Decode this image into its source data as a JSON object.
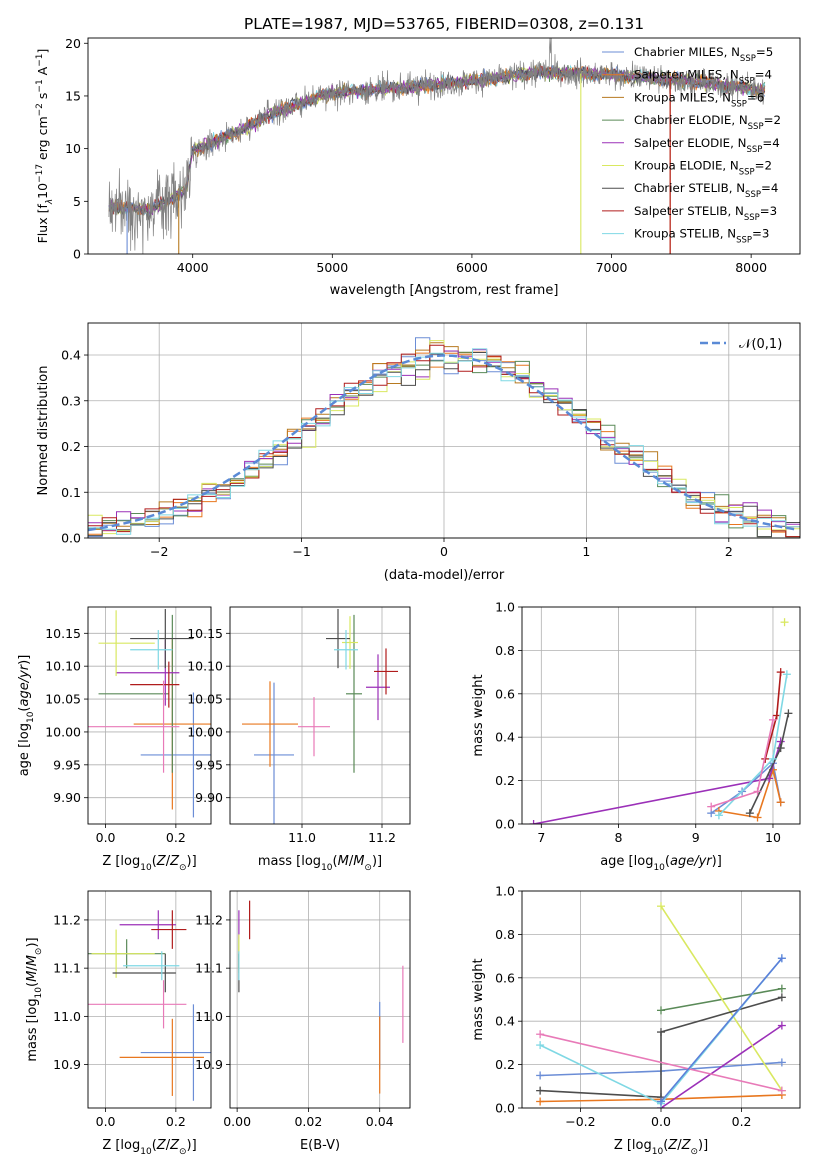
{
  "figure": {
    "title": "PLATE=1987, MJD=53765, FIBERID=0308, z=0.131"
  },
  "models": [
    {
      "name": "Chabrier MILES, N$_{SSP}$=5",
      "base": "Chabrier MILES, N",
      "sub": "SSP",
      "tail": "=5",
      "color": "#6b8dd6"
    },
    {
      "name": "Salpeter MILES, N$_{SSP}$=4",
      "base": "Salpeter MILES, N",
      "sub": "SSP",
      "tail": "=4",
      "color": "#e8771f"
    },
    {
      "name": "Kroupa MILES, N$_{SSP}$=6",
      "base": "Kroupa MILES, N",
      "sub": "SSP",
      "tail": "=6",
      "color": "#b77a20"
    },
    {
      "name": "Chabrier ELODIE, N$_{SSP}$=2",
      "base": "Chabrier ELODIE, N",
      "sub": "SSP",
      "tail": "=2",
      "color": "#5a8a58"
    },
    {
      "name": "Salpeter ELODIE, N$_{SSP}$=4",
      "base": "Salpeter ELODIE, N",
      "sub": "SSP",
      "tail": "=4",
      "color": "#9b30b8"
    },
    {
      "name": "Kroupa ELODIE, N$_{SSP}$=2",
      "base": "Kroupa ELODIE, N",
      "sub": "SSP",
      "tail": "=2",
      "color": "#d9e860"
    },
    {
      "name": "Chabrier STELIB, N$_{SSP}$=4",
      "base": "Chabrier STELIB, N",
      "sub": "SSP",
      "tail": "=4",
      "color": "#4d4d4d"
    },
    {
      "name": "Salpeter STELIB, N$_{SSP}$=3",
      "base": "Salpeter STELIB, N",
      "sub": "SSP",
      "tail": "=3",
      "color": "#b01c1c"
    },
    {
      "name": "Kroupa STELIB, N$_{SSP}$=3",
      "base": "Kroupa STELIB, N",
      "sub": "SSP",
      "tail": "=3",
      "color": "#7fd8e4"
    }
  ],
  "extra_colors": {
    "pink": "#e87ab8",
    "blue2": "#5b7fd9",
    "dashed": "#5a8ad6"
  },
  "chart_data": [
    {
      "type": "line",
      "panel": "spectrum",
      "xlabel": "wavelength [Angstrom, rest frame]",
      "ylabel_parts": [
        "Flux [f",
        "λ",
        "10",
        "−17",
        " erg cm",
        "−2",
        " s",
        "−1",
        " A",
        "−1",
        "]"
      ],
      "xlim": [
        3250,
        8350
      ],
      "ylim": [
        0,
        20.5
      ],
      "xticks": [
        4000,
        5000,
        6000,
        7000,
        8000
      ],
      "yticks": [
        0,
        5,
        10,
        15,
        20
      ],
      "x_start": 3400,
      "x_end": 8100,
      "continuum_knots": [
        [
          3400,
          4.5
        ],
        [
          3700,
          4.2
        ],
        [
          3950,
          6.0
        ],
        [
          4000,
          9.8
        ],
        [
          4300,
          11.5
        ],
        [
          4600,
          13.5
        ],
        [
          5000,
          15.3
        ],
        [
          5500,
          15.8
        ],
        [
          6000,
          16.4
        ],
        [
          6500,
          17.3
        ],
        [
          7000,
          17.0
        ],
        [
          7500,
          16.5
        ],
        [
          8100,
          15.5
        ]
      ],
      "dropouts": [
        {
          "series": 0,
          "x": 3530
        },
        {
          "series": 2,
          "x": 3900
        },
        {
          "series": 5,
          "x": 6780
        },
        {
          "series": 1,
          "x": 7420
        },
        {
          "series": 7,
          "x": 7420
        }
      ]
    },
    {
      "type": "histogram",
      "panel": "residuals",
      "xlabel": "(data-model)/error",
      "ylabel": "Normed distribution",
      "xlim": [
        -2.5,
        2.5
      ],
      "ylim": [
        0,
        0.47
      ],
      "xticks": [
        -2,
        -1,
        0,
        1,
        2
      ],
      "yticks": [
        0.0,
        0.1,
        0.2,
        0.3,
        0.4
      ],
      "bin_width": 0.1,
      "legend": "𝒩(0,1)",
      "legend_loc": "upper right"
    },
    {
      "type": "scatter",
      "panel": "age_vs_Z",
      "xlabel": "Z [log10(Z/Z⊙)]",
      "ylabel": "age  [log10(age/yr)]",
      "xlim": [
        -0.05,
        0.3
      ],
      "ylim": [
        9.86,
        10.19
      ],
      "xticks": [
        0.0,
        0.2
      ],
      "yticks": [
        9.9,
        9.95,
        10.0,
        10.05,
        10.1,
        10.15
      ],
      "points": [
        {
          "series": 0,
          "x": 0.2,
          "y": 9.965,
          "xerr": 0.1,
          "yerr": 0.095,
          "cross_x": 0.25
        },
        {
          "series": 1,
          "x": 0.19,
          "y": 10.012,
          "xerr": 0.11,
          "yerr": 0.13,
          "cross_x": 0.19
        },
        {
          "series": 3,
          "x": 0.08,
          "y": 10.058,
          "xerr": 0.1,
          "yerr": 0.12,
          "cross_x": 0.19
        },
        {
          "series": 4,
          "x": 0.12,
          "y": 10.09,
          "xerr": 0.09,
          "yerr": 0.05,
          "cross_x": 0.17
        },
        {
          "series": 5,
          "x": 0.06,
          "y": 10.135,
          "xerr": 0.08,
          "yerr": 0.05,
          "cross_x": 0.03
        },
        {
          "series": 6,
          "x": 0.16,
          "y": 10.142,
          "xerr": 0.09,
          "yerr": 0.045,
          "cross_x": 0.17
        },
        {
          "series": 7,
          "x": 0.14,
          "y": 10.072,
          "xerr": 0.07,
          "yerr": 0.035,
          "cross_x": 0.18
        },
        {
          "series": 8,
          "x": 0.13,
          "y": 10.125,
          "xerr": 0.06,
          "yerr": 0.03,
          "cross_x": 0.15
        },
        {
          "color": "pink",
          "x": 0.08,
          "y": 10.008,
          "xerr": 0.13,
          "yerr": 0.07,
          "cross_x": 0.165
        }
      ]
    },
    {
      "type": "scatter",
      "panel": "age_vs_mass",
      "xlabel": "mass [log10(M/M⊙)]",
      "ylabel": "",
      "xlim": [
        10.82,
        11.27
      ],
      "ylim": [
        9.86,
        10.19
      ],
      "xticks": [
        11.0,
        11.2
      ],
      "yticks": [
        9.9,
        9.95,
        10.0,
        10.05,
        10.1,
        10.15
      ],
      "points": [
        {
          "series": 0,
          "x": 10.93,
          "y": 9.965,
          "xerr": 0.05,
          "yerr": 0.11
        },
        {
          "series": 1,
          "x": 10.92,
          "y": 10.012,
          "xerr": 0.07,
          "yerr": 0.065
        },
        {
          "series": 3,
          "x": 11.13,
          "y": 10.058,
          "xerr": 0.02,
          "yerr": 0.12
        },
        {
          "series": 4,
          "x": 11.19,
          "y": 10.068,
          "xerr": 0.03,
          "yerr": 0.05
        },
        {
          "series": 5,
          "x": 11.12,
          "y": 10.136,
          "xerr": 0.02,
          "yerr": 0.04
        },
        {
          "series": 6,
          "x": 11.09,
          "y": 10.142,
          "xerr": 0.03,
          "yerr": 0.045
        },
        {
          "series": 7,
          "x": 11.21,
          "y": 10.092,
          "xerr": 0.03,
          "yerr": 0.035
        },
        {
          "series": 8,
          "x": 11.11,
          "y": 10.125,
          "xerr": 0.03,
          "yerr": 0.03
        },
        {
          "color": "pink",
          "x": 11.03,
          "y": 10.008,
          "xerr": 0.04,
          "yerr": 0.045
        }
      ]
    },
    {
      "type": "line",
      "panel": "weight_vs_age",
      "xlabel": "age  [log10(age/yr)]",
      "ylabel": "mass weight",
      "xlim": [
        6.75,
        10.35
      ],
      "ylim": [
        0,
        1.0
      ],
      "xticks": [
        7,
        8,
        9,
        10
      ],
      "yticks": [
        0.0,
        0.2,
        0.4,
        0.6,
        0.8,
        1.0
      ],
      "series": [
        {
          "series": 0,
          "x": [
            9.2,
            9.6,
            10.0,
            10.1
          ],
          "y": [
            0.05,
            0.15,
            0.28,
            0.1
          ]
        },
        {
          "series": 1,
          "x": [
            9.3,
            9.8,
            10.0,
            10.1
          ],
          "y": [
            0.06,
            0.03,
            0.25,
            0.1
          ]
        },
        {
          "series": 4,
          "x": [
            6.9,
            9.95,
            10.1
          ],
          "y": [
            0.0,
            0.21,
            0.38
          ]
        },
        {
          "series": 5,
          "x": [
            10.15
          ],
          "y": [
            0.93
          ]
        },
        {
          "series": 6,
          "x": [
            9.7,
            10.1,
            10.2
          ],
          "y": [
            0.05,
            0.35,
            0.51
          ]
        },
        {
          "series": 7,
          "x": [
            9.9,
            10.05,
            10.1
          ],
          "y": [
            0.3,
            0.5,
            0.7
          ]
        },
        {
          "series": 8,
          "x": [
            9.3,
            10.0,
            10.18
          ],
          "y": [
            0.04,
            0.3,
            0.69
          ]
        },
        {
          "color": "pink",
          "x": [
            9.2,
            9.8,
            10.0
          ],
          "y": [
            0.08,
            0.15,
            0.48
          ]
        }
      ]
    },
    {
      "type": "scatter",
      "panel": "mass_vs_Z",
      "xlabel": "Z [log10(Z/Z⊙)]",
      "ylabel": "mass [log10(M/M⊙)]",
      "xlim": [
        -0.05,
        0.3
      ],
      "ylim": [
        10.81,
        11.26
      ],
      "xticks": [
        0.0,
        0.2
      ],
      "yticks": [
        10.9,
        11.0,
        11.1,
        11.2
      ],
      "points": [
        {
          "series": 0,
          "x": 0.2,
          "y": 10.925,
          "xerr": 0.1,
          "yerr": 0.1,
          "cross_x": 0.25
        },
        {
          "series": 1,
          "x": 0.16,
          "y": 10.915,
          "xerr": 0.12,
          "yerr": 0.08,
          "cross_x": 0.19
        },
        {
          "series": 3,
          "x": 0.06,
          "y": 11.13,
          "xerr": 0.11,
          "yerr": 0.03,
          "cross_x": 0.06
        },
        {
          "series": 4,
          "x": 0.12,
          "y": 11.19,
          "xerr": 0.08,
          "yerr": 0.03,
          "cross_x": 0.15
        },
        {
          "series": 5,
          "x": 0.05,
          "y": 11.13,
          "xerr": 0.09,
          "yerr": 0.05,
          "cross_x": 0.03
        },
        {
          "series": 6,
          "x": 0.11,
          "y": 11.09,
          "xerr": 0.09,
          "yerr": 0.04,
          "cross_x": 0.17
        },
        {
          "series": 7,
          "x": 0.18,
          "y": 11.18,
          "xerr": 0.05,
          "yerr": 0.04,
          "cross_x": 0.19
        },
        {
          "series": 8,
          "x": 0.13,
          "y": 11.105,
          "xerr": 0.08,
          "yerr": 0.03,
          "cross_x": 0.16
        },
        {
          "color": "pink",
          "x": 0.09,
          "y": 11.025,
          "xerr": 0.14,
          "yerr": 0.05,
          "cross_x": 0.165
        }
      ]
    },
    {
      "type": "scatter",
      "panel": "mass_vs_ebv",
      "xlabel": "E(B-V)",
      "ylabel": "",
      "xlim": [
        -0.002,
        0.0485
      ],
      "ylim": [
        10.81,
        11.26
      ],
      "xticks": [
        0.0,
        0.02,
        0.04
      ],
      "yticks": [
        10.9,
        11.0,
        11.1,
        11.2
      ],
      "points": [
        {
          "series": 0,
          "x": 0.04,
          "y": 10.96,
          "yerr": 0.07
        },
        {
          "series": 1,
          "x": 0.04,
          "y": 10.92,
          "yerr": 0.08
        },
        {
          "series": 3,
          "x": 0.0005,
          "y": 11.13,
          "yerr": 0.03
        },
        {
          "series": 4,
          "x": 0.0005,
          "y": 11.19,
          "yerr": 0.03
        },
        {
          "series": 5,
          "x": 0.0005,
          "y": 11.13,
          "yerr": 0.04
        },
        {
          "series": 6,
          "x": 0.0005,
          "y": 11.09,
          "yerr": 0.04
        },
        {
          "series": 7,
          "x": 0.0035,
          "y": 11.2,
          "yerr": 0.04
        },
        {
          "series": 8,
          "x": 0.0005,
          "y": 11.105,
          "yerr": 0.03
        },
        {
          "color": "pink",
          "x": 0.0465,
          "y": 11.025,
          "yerr": 0.08
        }
      ]
    },
    {
      "type": "line",
      "panel": "weight_vs_Z",
      "xlabel": "Z [log10(Z/Z⊙)]",
      "ylabel": "mass weight",
      "xlim": [
        -0.345,
        0.345
      ],
      "ylim": [
        0,
        1.0
      ],
      "xticks": [
        -0.2,
        0.0,
        0.2
      ],
      "yticks": [
        0.0,
        0.2,
        0.4,
        0.6,
        0.8,
        1.0
      ],
      "series": [
        {
          "series": 0,
          "x": [
            -0.3,
            0.0,
            0.3
          ],
          "y": [
            0.15,
            0.17,
            0.21
          ]
        },
        {
          "series": 1,
          "x": [
            -0.3,
            0.0,
            0.3
          ],
          "y": [
            0.03,
            0.04,
            0.06
          ]
        },
        {
          "series": 3,
          "x": [
            0.0,
            0.3
          ],
          "y": [
            0.45,
            0.55
          ]
        },
        {
          "series": 4,
          "x": [
            0.0,
            0.3
          ],
          "y": [
            0.0,
            0.38
          ]
        },
        {
          "series": 5,
          "x": [
            0.0,
            0.3
          ],
          "y": [
            0.93,
            0.08
          ]
        },
        {
          "series": 6,
          "x": [
            -0.3,
            0.0,
            0.0,
            0.3
          ],
          "y": [
            0.08,
            0.05,
            0.35,
            0.51
          ]
        },
        {
          "series": 8,
          "x": [
            -0.3,
            0.0,
            0.3
          ],
          "y": [
            0.29,
            0.02,
            0.69
          ]
        },
        {
          "color": "pink",
          "x": [
            -0.3,
            0.3
          ],
          "y": [
            0.34,
            0.08
          ]
        },
        {
          "color": "blue2",
          "x": [
            0.0,
            0.3
          ],
          "y": [
            0.03,
            0.69
          ]
        }
      ]
    }
  ]
}
